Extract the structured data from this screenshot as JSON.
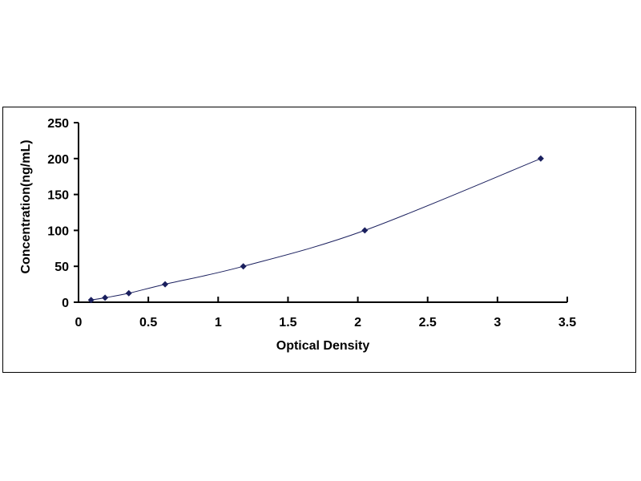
{
  "chart_data": {
    "type": "scatter",
    "title": "",
    "xlabel": "Optical Density",
    "ylabel": "Concentration(ng/mL)",
    "xlim": [
      0,
      3.5
    ],
    "ylim": [
      0,
      250
    ],
    "xticks": [
      "0",
      "0.5",
      "1",
      "1.5",
      "2",
      "2.5",
      "3",
      "3.5"
    ],
    "yticks": [
      "0",
      "50",
      "100",
      "150",
      "200",
      "250"
    ],
    "grid": false,
    "trendline": "smooth curve",
    "marker": "diamond",
    "colors": {
      "marker": "#1a1f5e",
      "line": "#1a1f5e"
    },
    "x": [
      0.09,
      0.19,
      0.36,
      0.62,
      1.18,
      2.05,
      3.31
    ],
    "y": [
      3.12,
      6.25,
      12.5,
      25,
      50,
      100,
      200
    ]
  }
}
